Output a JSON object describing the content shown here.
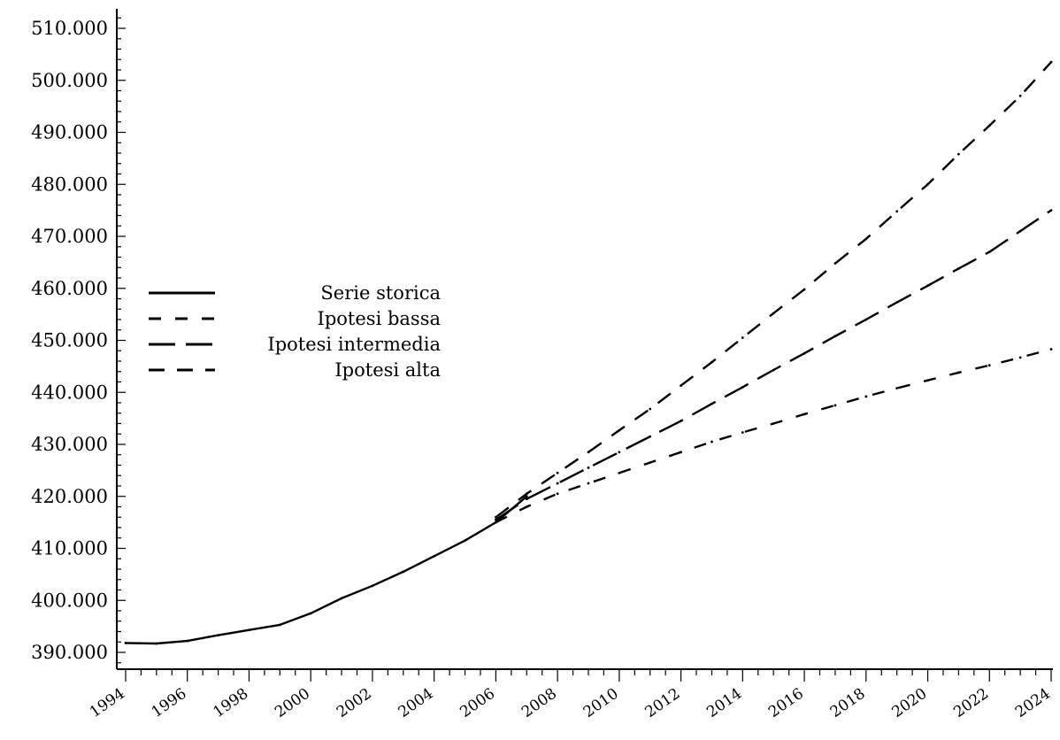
{
  "chart_data": {
    "type": "line",
    "title": "",
    "xlabel": "",
    "ylabel": "",
    "grid": false,
    "legend_position": "center-left",
    "xlim": [
      1994,
      2024
    ],
    "ylim": [
      388000,
      512000
    ],
    "y_ticks": [
      {
        "value": 390000,
        "label": "390.000"
      },
      {
        "value": 400000,
        "label": "400.000"
      },
      {
        "value": 410000,
        "label": "410.000"
      },
      {
        "value": 420000,
        "label": "420.000"
      },
      {
        "value": 430000,
        "label": "430.000"
      },
      {
        "value": 440000,
        "label": "440.000"
      },
      {
        "value": 450000,
        "label": "450.000"
      },
      {
        "value": 460000,
        "label": "460.000"
      },
      {
        "value": 470000,
        "label": "470.000"
      },
      {
        "value": 480000,
        "label": "480.000"
      },
      {
        "value": 490000,
        "label": "490.000"
      },
      {
        "value": 500000,
        "label": "500.000"
      },
      {
        "value": 510000,
        "label": "510.000"
      }
    ],
    "x_ticks": [
      {
        "value": 1994,
        "label": "1994"
      },
      {
        "value": 1996,
        "label": "1996"
      },
      {
        "value": 1998,
        "label": "1998"
      },
      {
        "value": 2000,
        "label": "2000"
      },
      {
        "value": 2002,
        "label": "2002"
      },
      {
        "value": 2004,
        "label": "2004"
      },
      {
        "value": 2006,
        "label": "2006"
      },
      {
        "value": 2008,
        "label": "2008"
      },
      {
        "value": 2010,
        "label": "2010"
      },
      {
        "value": 2012,
        "label": "2012"
      },
      {
        "value": 2014,
        "label": "2014"
      },
      {
        "value": 2016,
        "label": "2016"
      },
      {
        "value": 2018,
        "label": "2018"
      },
      {
        "value": 2020,
        "label": "2020"
      },
      {
        "value": 2022,
        "label": "2022"
      },
      {
        "value": 2024,
        "label": "2024"
      }
    ],
    "series": [
      {
        "name": "Serie storica",
        "style": "solid",
        "color": "#000000",
        "x": [
          1994,
          1995,
          1996,
          1997,
          1998,
          1999,
          2000,
          2001,
          2002,
          2003,
          2004,
          2005,
          2006,
          2007
        ],
        "y": [
          391800,
          391700,
          392200,
          393300,
          394300,
          395300,
          397500,
          400400,
          402800,
          405500,
          408500,
          411500,
          415000,
          420000
        ]
      },
      {
        "name": "Ipotesi bassa",
        "style": "dashed-short",
        "color": "#000000",
        "x": [
          2006,
          2007,
          2008,
          2009,
          2010,
          2011,
          2012,
          2013,
          2014,
          2015,
          2016,
          2017,
          2018,
          2019,
          2020,
          2021,
          2022,
          2023,
          2024
        ],
        "y": [
          415000,
          418000,
          420500,
          422500,
          424500,
          426500,
          428500,
          430500,
          432300,
          434000,
          435800,
          437500,
          439200,
          440800,
          442300,
          443800,
          445200,
          446700,
          448300
        ]
      },
      {
        "name": "Ipotesi intermedia",
        "style": "dashed-long",
        "color": "#000000",
        "x": [
          2006,
          2007,
          2008,
          2009,
          2010,
          2011,
          2012,
          2013,
          2014,
          2015,
          2016,
          2017,
          2018,
          2019,
          2020,
          2021,
          2022,
          2023,
          2024
        ],
        "y": [
          415500,
          419500,
          422500,
          425500,
          428500,
          431500,
          434500,
          437800,
          441000,
          444300,
          447500,
          450800,
          454000,
          457300,
          460500,
          463800,
          467000,
          471000,
          475000
        ]
      },
      {
        "name": "Ipotesi alta",
        "style": "dashed-medium",
        "color": "#000000",
        "x": [
          2006,
          2007,
          2008,
          2009,
          2010,
          2011,
          2012,
          2013,
          2014,
          2015,
          2016,
          2017,
          2018,
          2019,
          2020,
          2021,
          2022,
          2023,
          2024
        ],
        "y": [
          416000,
          420500,
          424500,
          428500,
          432700,
          436800,
          441300,
          445800,
          450500,
          455200,
          459800,
          464800,
          469500,
          474800,
          480000,
          485800,
          491300,
          497000,
          503500
        ]
      }
    ]
  }
}
